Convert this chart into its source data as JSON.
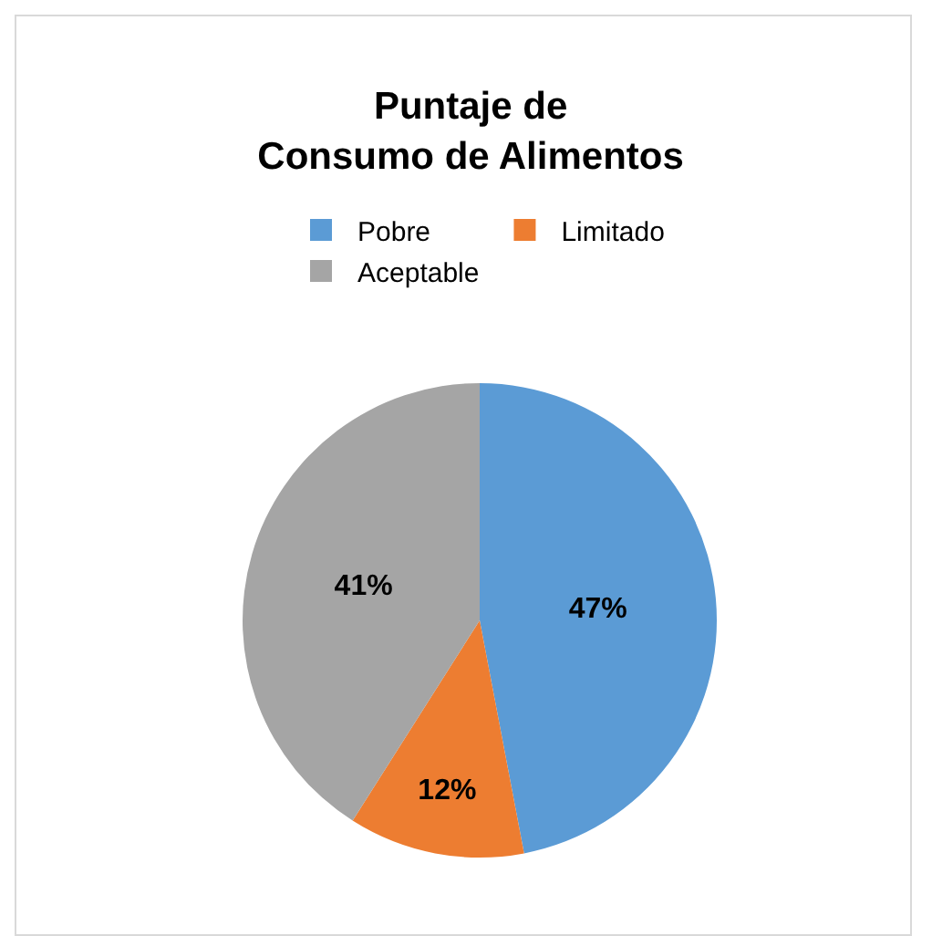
{
  "chart_data": {
    "type": "pie",
    "title": "Puntaje de\nConsumo de Alimentos",
    "categories": [
      "Pobre",
      "Limitado",
      "Aceptable"
    ],
    "values": [
      47,
      12,
      41
    ],
    "colors": [
      "#5b9bd5",
      "#ed7d31",
      "#a5a5a5"
    ],
    "value_labels": [
      "47%",
      "12%",
      "41%"
    ],
    "legend": "top"
  }
}
